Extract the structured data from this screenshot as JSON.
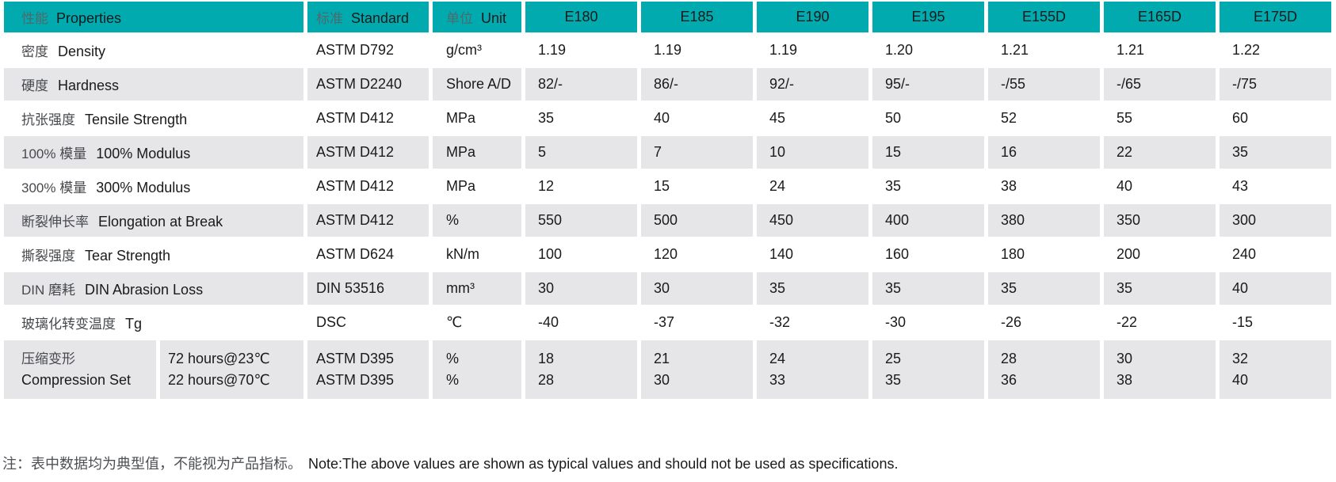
{
  "colors": {
    "header_teal": "#00aaae",
    "row_shade_gray": "#e6e6e8",
    "text_black": "#1a1a1a",
    "text_chinese_gray": "#47494d"
  },
  "table": {
    "header": {
      "properties_zh": "性能",
      "properties_en": "Properties",
      "standard_zh": "标准",
      "standard_en": "Standard",
      "unit_zh": "单位",
      "unit_en": "Unit",
      "grades": [
        "E180",
        "E185",
        "E190",
        "E195",
        "E155D",
        "E165D",
        "E175D"
      ]
    },
    "rows": [
      {
        "zh": "密度",
        "en": "Density",
        "standard": "ASTM D792",
        "unit": "g/cm³",
        "values": [
          "1.19",
          "1.19",
          "1.19",
          "1.20",
          "1.21",
          "1.21",
          "1.22"
        ]
      },
      {
        "zh": "硬度",
        "en": "Hardness",
        "standard": "ASTM D2240",
        "unit": "Shore A/D",
        "values": [
          "82/-",
          "86/-",
          "92/-",
          "95/-",
          "-/55",
          "-/65",
          "-/75"
        ]
      },
      {
        "zh": "抗张强度",
        "en": "Tensile Strength",
        "standard": "ASTM D412",
        "unit": "MPa",
        "values": [
          "35",
          "40",
          "45",
          "50",
          "52",
          "55",
          "60"
        ]
      },
      {
        "zh": "100% 模量",
        "en": "100% Modulus",
        "standard": "ASTM D412",
        "unit": "MPa",
        "values": [
          "5",
          "7",
          "10",
          "15",
          "16",
          "22",
          "35"
        ]
      },
      {
        "zh": "300% 模量",
        "en": "300% Modulus",
        "standard": "ASTM D412",
        "unit": "MPa",
        "values": [
          "12",
          "15",
          "24",
          "35",
          "38",
          "40",
          "43"
        ]
      },
      {
        "zh": "断裂伸长率",
        "en": "Elongation at Break",
        "standard": "ASTM D412",
        "unit": "%",
        "values": [
          "550",
          "500",
          "450",
          "400",
          "380",
          "350",
          "300"
        ]
      },
      {
        "zh": "撕裂强度",
        "en": "Tear Strength",
        "standard": "ASTM D624",
        "unit": "kN/m",
        "values": [
          "100",
          "120",
          "140",
          "160",
          "180",
          "200",
          "240"
        ]
      },
      {
        "zh": "DIN 磨耗",
        "en": "DIN Abrasion Loss",
        "standard": "DIN 53516",
        "unit": "mm³",
        "values": [
          "30",
          "30",
          "35",
          "35",
          "35",
          "35",
          "40"
        ]
      },
      {
        "zh": "玻璃化转变温度",
        "en": "Tg",
        "standard": "DSC",
        "unit": "℃",
        "values": [
          "-40",
          "-37",
          "-32",
          "-30",
          "-26",
          "-22",
          "-15"
        ]
      }
    ],
    "compound_row": {
      "label_lines": [
        "压缩变形",
        "Compression Set"
      ],
      "condition_lines": [
        "72 hours@23℃",
        "22 hours@70℃"
      ],
      "standard_lines": [
        "ASTM D395",
        "ASTM D395"
      ],
      "unit_lines": [
        "%",
        "%"
      ],
      "value_lines": [
        [
          "18",
          "21",
          "24",
          "25",
          "28",
          "30",
          "32"
        ],
        [
          "28",
          "30",
          "33",
          "35",
          "36",
          "38",
          "40"
        ]
      ]
    }
  },
  "note": {
    "zh": "注：表中数据均为典型值，不能视为产品指标。",
    "en": "Note:The above values are shown as typical values and should not be used as specifications."
  }
}
